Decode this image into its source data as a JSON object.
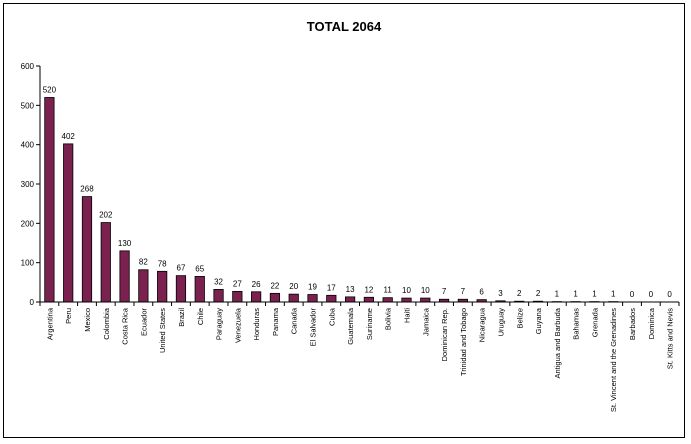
{
  "chart_data": {
    "type": "bar",
    "title": "TOTAL 2064",
    "ylim": [
      0,
      600
    ],
    "yticks": [
      0,
      100,
      200,
      300,
      400,
      500,
      600
    ],
    "grid": false,
    "legend": "none",
    "bar_color": "#7a2150",
    "categories": [
      "Argentina",
      "Peru",
      "Mexico",
      "Colombia",
      "Costa Rica",
      "Ecuador",
      "United States",
      "Brazil",
      "Chile",
      "Paraguay",
      "Venezuela",
      "Honduras",
      "Panama",
      "Canada",
      "El Salvador",
      "Cuba",
      "Guatemala",
      "Suriname",
      "Bolivia",
      "Haiti",
      "Jamaica",
      "Dominican Rep.",
      "Trinidad and Tobago",
      "Nicaragua",
      "Uruguay",
      "Belize",
      "Guyana",
      "Antigua and Barbuda",
      "Bahamas",
      "Grenada",
      "St. Vincent and the Grenadines",
      "Barbados",
      "Dominica",
      "St. Kitts and Nevis"
    ],
    "values": [
      520,
      402,
      268,
      202,
      130,
      82,
      78,
      67,
      65,
      32,
      27,
      26,
      22,
      20,
      19,
      17,
      13,
      12,
      11,
      10,
      10,
      7,
      7,
      6,
      3,
      2,
      2,
      1,
      1,
      1,
      1,
      0,
      0,
      0
    ]
  }
}
